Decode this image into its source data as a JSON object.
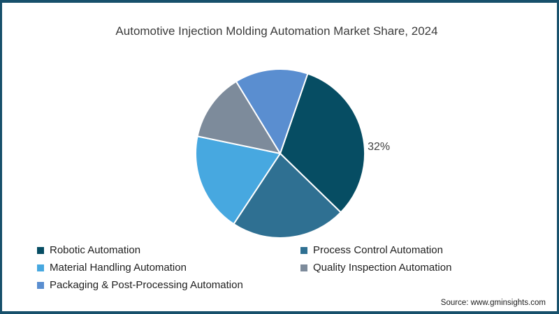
{
  "chart_data": {
    "type": "pie",
    "title": "Automotive Injection Molding Automation Market Share, 2024",
    "start_angle_deg": 19,
    "direction": "clockwise",
    "legend_position": "bottom-left, two columns",
    "slices": [
      {
        "label": "Robotic Automation",
        "value": 32,
        "color": "#064d63",
        "shown_label": "32%"
      },
      {
        "label": "Process Control Automation",
        "value": 22,
        "color": "#2f7092",
        "shown_label": ""
      },
      {
        "label": "Material Handling Automation",
        "value": 19,
        "color": "#47a8e0",
        "shown_label": ""
      },
      {
        "label": "Quality Inspection Automation",
        "value": 13,
        "color": "#7d8b9b",
        "shown_label": ""
      },
      {
        "label": "Packaging & Post-Processing Automation",
        "value": 14,
        "color": "#5a8ed0",
        "shown_label": ""
      }
    ]
  },
  "footer": {
    "source": "Source: www.gminsights.com"
  },
  "theme": {
    "border_color": "#17506b",
    "background": "#ffffff",
    "title_color": "#3b3b3b",
    "data_label_color": "#404040",
    "legend_text_color": "#1f1f1f",
    "slice_divider_color": "#ffffff"
  }
}
